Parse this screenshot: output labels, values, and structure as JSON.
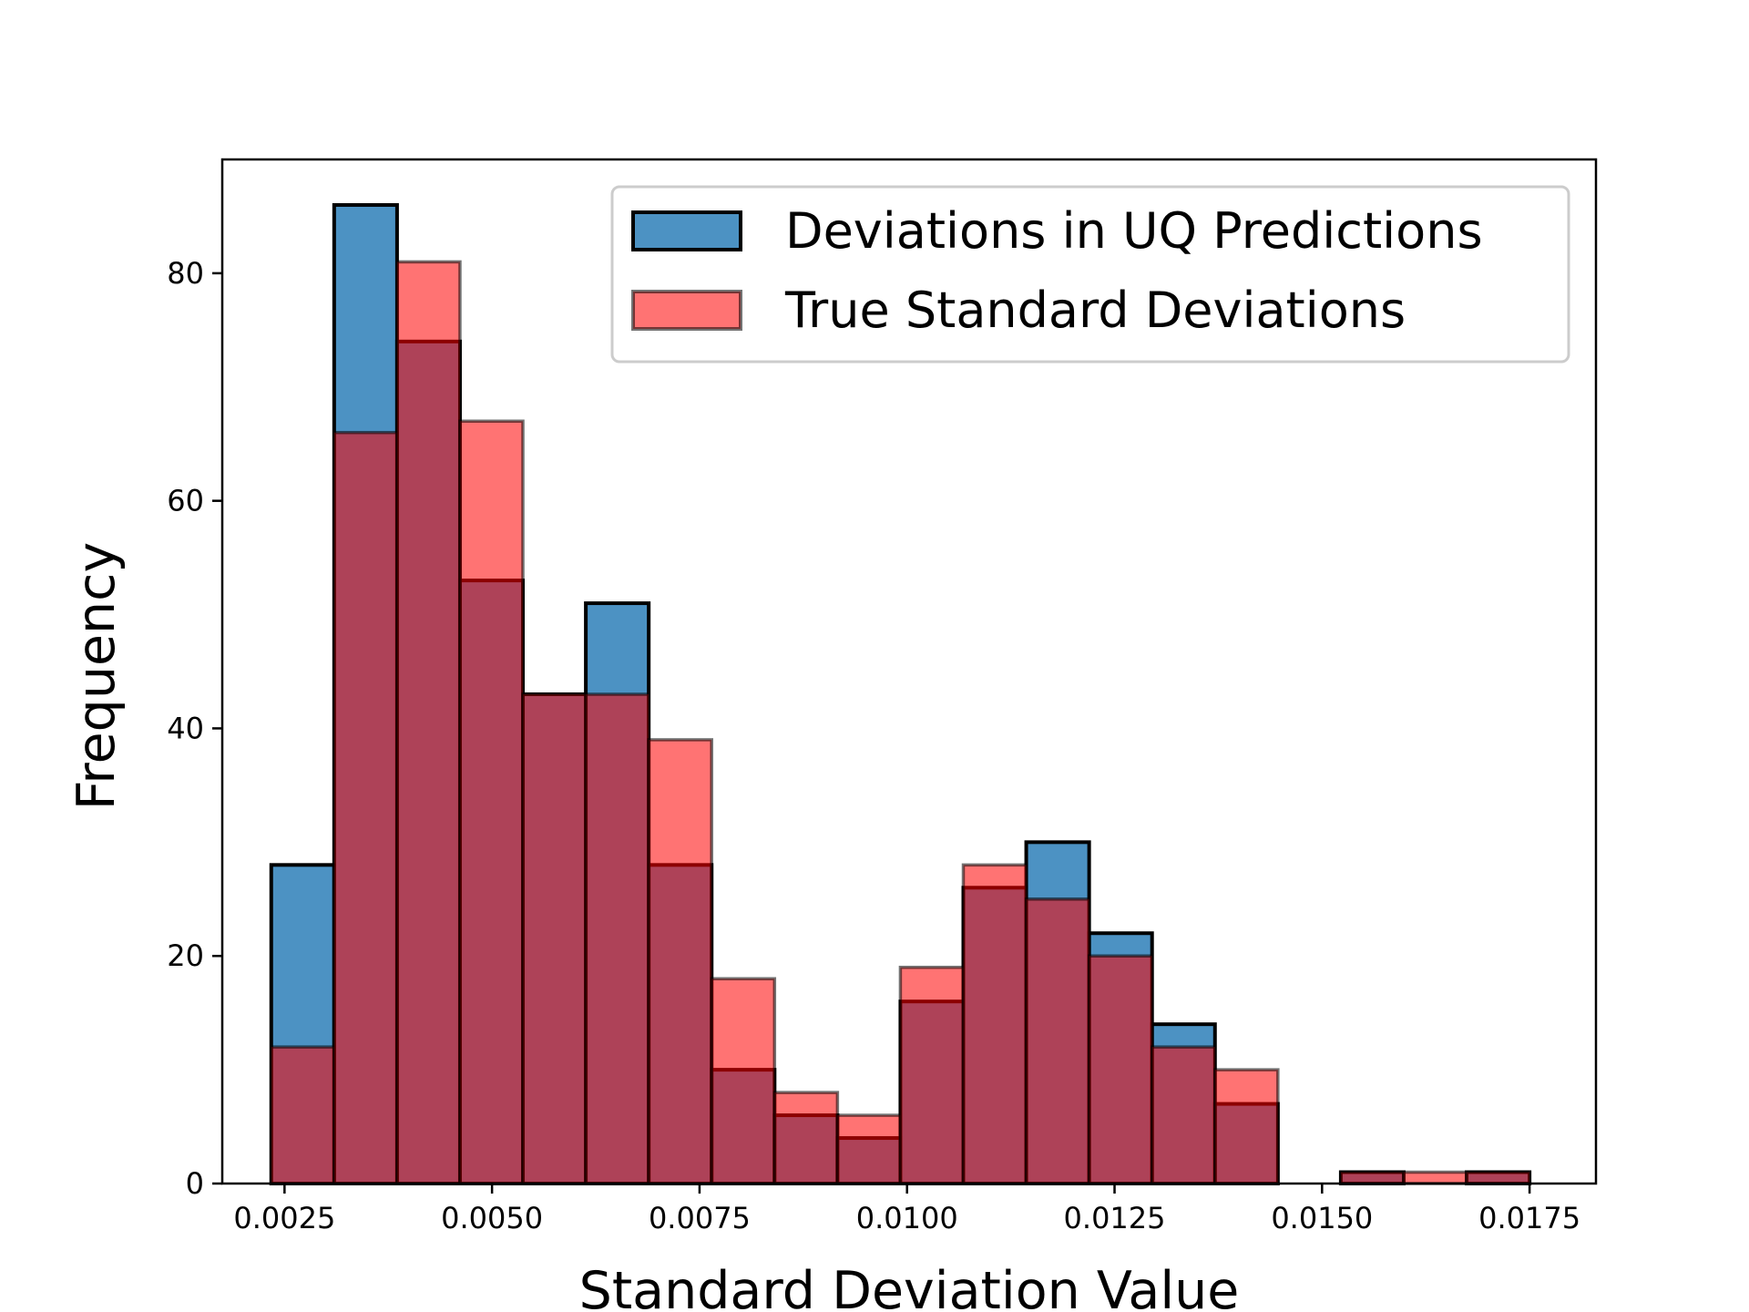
{
  "chart_data": {
    "type": "bar",
    "title": "",
    "xlabel": "Standard Deviation Value",
    "ylabel": "Frequency",
    "xlim": [
      0.00175,
      0.0183
    ],
    "ylim": [
      0,
      90
    ],
    "xticks": [
      0.0025,
      0.005,
      0.0075,
      0.01,
      0.0125,
      0.015,
      0.0175
    ],
    "xtick_labels": [
      "0.0025",
      "0.0050",
      "0.0075",
      "0.0100",
      "0.0125",
      "0.0150",
      "0.0175"
    ],
    "yticks": [
      0,
      20,
      40,
      60,
      80
    ],
    "ytick_labels": [
      "0",
      "20",
      "40",
      "60",
      "80"
    ],
    "grid": false,
    "legend_position": "top-right",
    "series": [
      {
        "name": "Deviations in UQ Predictions",
        "color": "#1f77b4",
        "opacity": 0.8,
        "edge_color": "#000000",
        "bin_start": 0.00234,
        "bin_width": 0.000758,
        "values": [
          28,
          86,
          74,
          53,
          43,
          51,
          28,
          10,
          6,
          4,
          16,
          26,
          30,
          22,
          14,
          7,
          0,
          1,
          0,
          1
        ]
      },
      {
        "name": "True Standard Deviations",
        "color": "#ff0000",
        "opacity": 0.55,
        "edge_color": "#000000",
        "bin_start": 0.00234,
        "bin_width": 0.000758,
        "values": [
          12,
          66,
          81,
          67,
          43,
          43,
          39,
          18,
          8,
          6,
          19,
          28,
          25,
          20,
          12,
          10,
          0,
          1,
          1,
          1
        ]
      }
    ]
  }
}
